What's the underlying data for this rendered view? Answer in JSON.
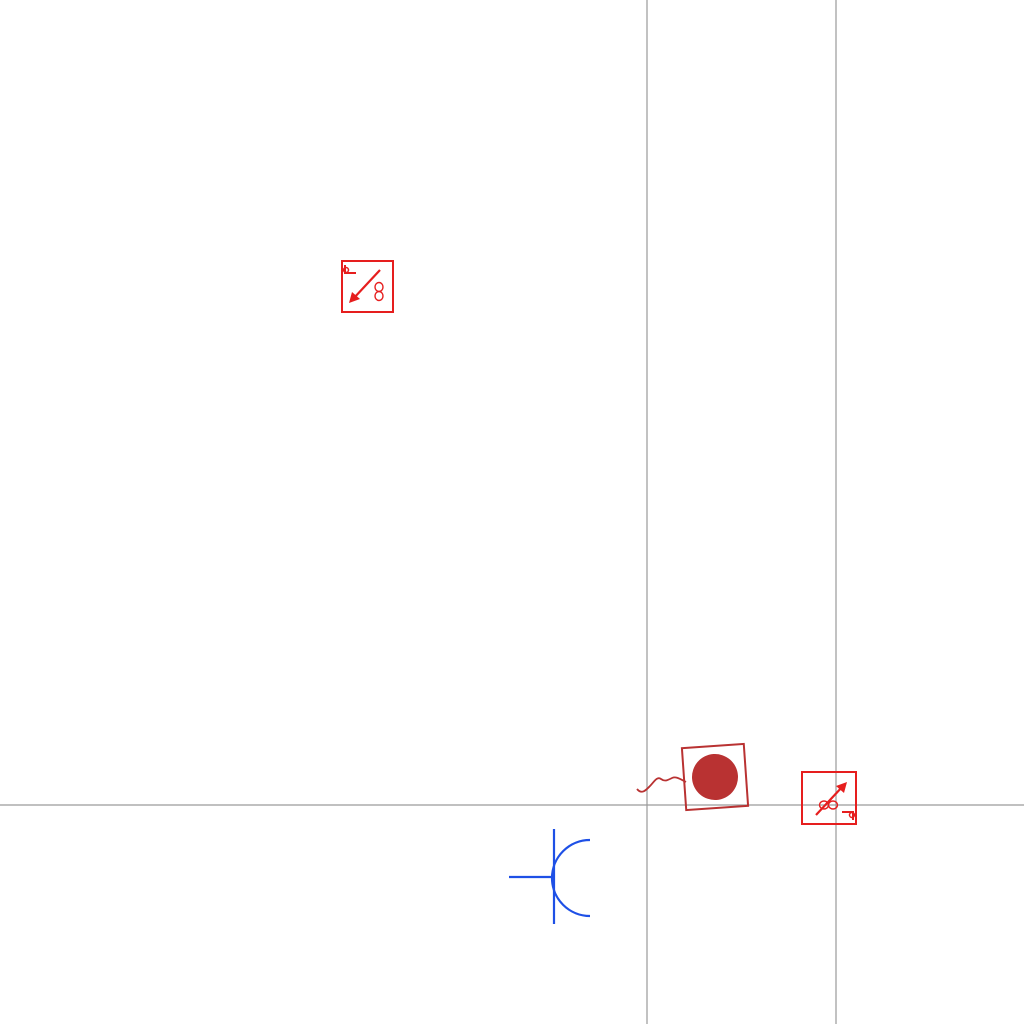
{
  "colors": {
    "background": "#ffffff",
    "grid_line": "#9a9a9a",
    "symbol_red": "#e61e1e",
    "symbol_dark_red": "#b93232",
    "symbol_blue": "#1e50e6"
  },
  "grid": {
    "vertical_lines": 2,
    "horizontal_lines": 1
  },
  "symbols": [
    {
      "name": "fixture-box-diagonal-arrow",
      "icon": "arrow-down-left-icon",
      "rotation_deg": 0
    },
    {
      "name": "device-box-filled-circle",
      "icon": "filled-circle-icon",
      "rotation_deg": -4
    },
    {
      "name": "fixture-box-diagonal-arrow-rotated",
      "icon": "arrow-up-left-icon",
      "rotation_deg": 180
    },
    {
      "name": "connector-jack-symbol",
      "icon": "jack-connector-icon",
      "rotation_deg": 0
    }
  ]
}
